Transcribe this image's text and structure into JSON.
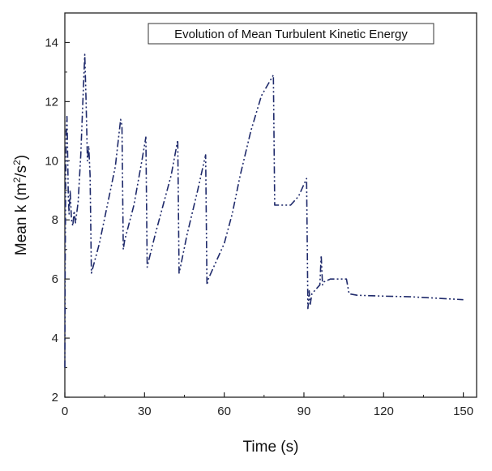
{
  "chart_data": {
    "type": "line",
    "title": "Evolution of  Mean Turbulent Kinetic Energy",
    "xlabel": "Time (s)",
    "ylabel_main": "Mean k (m",
    "ylabel_sup1": "2",
    "ylabel_mid": "/s",
    "ylabel_sup2": "2",
    "ylabel_end": ")",
    "xlim": [
      0,
      155
    ],
    "ylim": [
      2,
      15
    ],
    "xticks": [
      0,
      30,
      60,
      90,
      120,
      150
    ],
    "yticks": [
      2,
      4,
      6,
      8,
      10,
      12,
      14
    ],
    "xtick_labels": [
      "0",
      "30",
      "60",
      "90",
      "120",
      "150"
    ],
    "ytick_labels": [
      "2",
      "4",
      "6",
      "8",
      "10",
      "12",
      "14"
    ],
    "line_color": "#1f2a6b",
    "line_style": "dash-dot-dot",
    "grid": false,
    "series": [
      {
        "x": [
          0,
          0.1,
          0.3,
          0.5,
          0.8,
          1.0,
          1.3,
          1.6,
          2.0,
          2.5,
          3.0,
          3.5,
          4.0,
          5.0,
          6.0,
          7.0,
          7.5,
          8.0,
          8.5,
          9.0,
          9.5,
          10.0,
          13,
          16,
          19,
          21,
          21.5,
          22,
          22.5,
          26,
          29,
          30.5,
          31,
          31.5,
          34,
          37,
          40,
          42.5,
          43,
          43.5,
          46,
          50,
          53,
          53.5,
          54,
          57,
          60,
          63,
          66,
          70,
          74,
          78.5,
          79,
          80,
          85,
          88,
          91,
          91.5,
          92,
          92.3,
          93,
          95,
          96,
          96.5,
          97,
          97.5,
          100,
          103,
          106,
          107,
          110,
          120,
          130,
          140,
          150
        ],
        "y": [
          3.0,
          6.0,
          9.0,
          11.0,
          11.5,
          10.5,
          8.8,
          8.2,
          9.0,
          8.0,
          7.8,
          8.3,
          7.9,
          8.6,
          10.2,
          12.5,
          13.6,
          12.0,
          10.0,
          10.5,
          9.5,
          6.2,
          7.2,
          8.5,
          9.8,
          11.4,
          11.2,
          7.0,
          7.3,
          8.5,
          10.0,
          10.8,
          6.4,
          6.6,
          7.5,
          8.5,
          9.5,
          10.7,
          6.2,
          6.4,
          7.5,
          9.0,
          10.2,
          5.8,
          6.0,
          6.6,
          7.2,
          8.2,
          9.5,
          11.0,
          12.2,
          12.9,
          8.5,
          8.5,
          8.5,
          8.8,
          9.4,
          5.0,
          5.6,
          5.1,
          5.5,
          5.7,
          5.8,
          6.8,
          5.8,
          5.9,
          6.0,
          6.0,
          6.0,
          5.5,
          5.45,
          5.42,
          5.4,
          5.35,
          5.3
        ]
      }
    ]
  }
}
